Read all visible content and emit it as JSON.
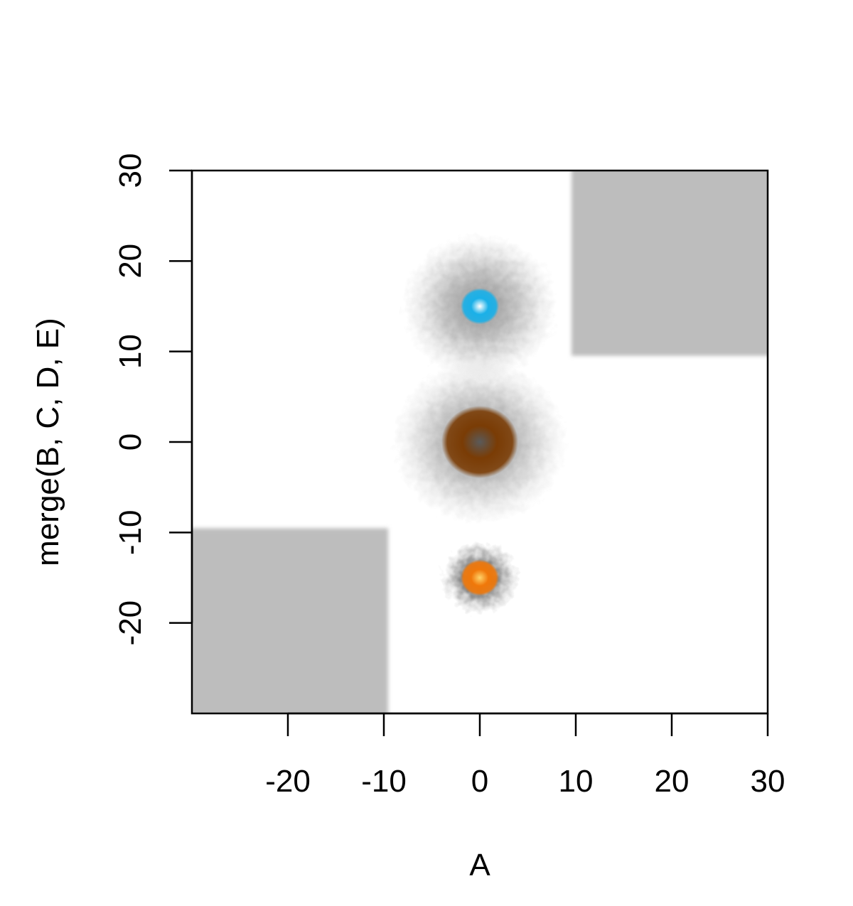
{
  "chart_data": {
    "type": "heatmap",
    "title": "",
    "xlabel": "A",
    "ylabel": "merge(B, C, D, E)",
    "xlim": [
      -30,
      30
    ],
    "ylim": [
      -30,
      30
    ],
    "x_ticks": [
      -20,
      -10,
      0,
      10,
      20,
      30
    ],
    "y_ticks": [
      -20,
      -10,
      0,
      10,
      20,
      30
    ],
    "x_tick_labels": [
      "-20",
      "-10",
      "0",
      "10",
      "20",
      "30"
    ],
    "y_tick_labels": [
      "-20",
      "-10",
      "0",
      "10",
      "20",
      "30"
    ],
    "grid": false,
    "legend": "none",
    "regions": [
      {
        "shape": "rect",
        "x": [
          -30,
          -10
        ],
        "y": [
          -30,
          -10
        ],
        "intensity": 0.3,
        "color": "#bdbdbd"
      },
      {
        "shape": "rect",
        "x": [
          10,
          30
        ],
        "y": [
          10,
          30
        ],
        "intensity": 0.3,
        "color": "#bdbdbd"
      }
    ],
    "blobs": [
      {
        "x": 0,
        "y": 15,
        "halo_radius": 8,
        "core_radius": 2,
        "core_color": "#1ab0e8",
        "halo_color": "#8c8c8c"
      },
      {
        "x": 0,
        "y": 0,
        "halo_radius": 9,
        "core_radius": 4,
        "core_color": "#7a3c05",
        "center_color": "#5a5a5a",
        "halo_color": "#8c8c8c"
      },
      {
        "x": 0,
        "y": -15,
        "halo_radius": 4,
        "core_radius": 2,
        "core_color": "#f0780a",
        "center_color": "#ffd36a",
        "halo_color": "#3a3a3a"
      }
    ]
  }
}
